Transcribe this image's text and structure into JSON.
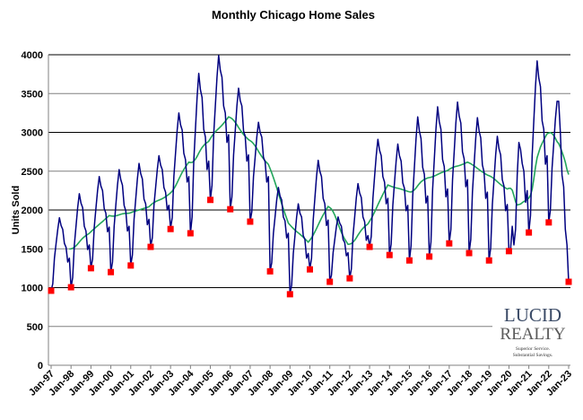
{
  "chart_data": {
    "type": "line",
    "title": "Monthly Chicago Home Sales",
    "xlabel": "",
    "ylabel": "Units Sold",
    "ylim": [
      0,
      4000
    ],
    "yticks": [
      "0",
      "500",
      "1000",
      "1500",
      "2000",
      "2500",
      "3000",
      "3500",
      "4000"
    ],
    "grid": true,
    "x_start": "Jan-97",
    "x_end": "Jan-23",
    "xticks": [
      "Jan-97",
      "Jan-98",
      "Jan-99",
      "Jan-00",
      "Jan-01",
      "Jan-02",
      "Jan-03",
      "Jan-04",
      "Jan-05",
      "Jan-06",
      "Jan-07",
      "Jan-08",
      "Jan-09",
      "Jan-10",
      "Jan-11",
      "Jan-12",
      "Jan-13",
      "Jan-14",
      "Jan-15",
      "Jan-16",
      "Jan-17",
      "Jan-18",
      "Jan-19",
      "Jan-20",
      "Jan-21",
      "Jan-22",
      "Jan-23"
    ],
    "series": [
      {
        "type": "line",
        "color": "#000080",
        "values_monthly": {
          "1997": [
            960,
            1050,
            1380,
            1570,
            1750,
            1900,
            1800,
            1750,
            1570,
            1520,
            1330,
            1380
          ],
          "1998": [
            1000,
            1130,
            1550,
            1790,
            2030,
            2210,
            2090,
            2030,
            1790,
            1730,
            1490,
            1550
          ],
          "1999": [
            1250,
            1370,
            1780,
            2020,
            2250,
            2430,
            2310,
            2250,
            2020,
            1960,
            1720,
            1780
          ],
          "2000": [
            1200,
            1330,
            1790,
            2060,
            2320,
            2520,
            2390,
            2320,
            2060,
            1990,
            1730,
            1790
          ],
          "2001": [
            1290,
            1420,
            1880,
            2140,
            2400,
            2600,
            2470,
            2400,
            2140,
            2080,
            1810,
            1880
          ],
          "2002": [
            1530,
            1640,
            2060,
            2290,
            2520,
            2700,
            2580,
            2520,
            2290,
            2230,
            2000,
            2060
          ],
          "2003": [
            1760,
            1900,
            2430,
            2730,
            3030,
            3250,
            3100,
            3030,
            2730,
            2650,
            2360,
            2430
          ],
          "2004": [
            1700,
            1910,
            2630,
            3040,
            3450,
            3760,
            3550,
            3450,
            3040,
            2940,
            2520,
            2630
          ],
          "2005": [
            2130,
            2320,
            2970,
            3340,
            3710,
            3990,
            3800,
            3710,
            3340,
            3250,
            2870,
            2970
          ],
          "2006": [
            2010,
            2170,
            2710,
            3020,
            3340,
            3570,
            3410,
            3340,
            3020,
            2950,
            2630,
            2710
          ],
          "2007": [
            1850,
            1980,
            2430,
            2680,
            2940,
            3130,
            3000,
            2940,
            2680,
            2620,
            2360,
            2430
          ],
          "2008": [
            1210,
            1320,
            1700,
            1910,
            2130,
            2290,
            2180,
            2130,
            1910,
            1860,
            1640,
            1700
          ],
          "2009": [
            920,
            1030,
            1440,
            1670,
            1910,
            2080,
            1960,
            1910,
            1670,
            1620,
            1380,
            1440
          ],
          "2010": [
            1240,
            1380,
            1870,
            2150,
            2430,
            2640,
            2500,
            2430,
            2150,
            2080,
            1800,
            1870
          ],
          "2011": [
            1080,
            1160,
            1450,
            1620,
            1790,
            1910,
            1830,
            1790,
            1620,
            1580,
            1410,
            1450
          ],
          "2012": [
            1120,
            1240,
            1670,
            1910,
            2160,
            2340,
            2220,
            2160,
            1910,
            1850,
            1610,
            1670
          ],
          "2013": [
            1530,
            1660,
            2150,
            2430,
            2700,
            2910,
            2770,
            2700,
            2430,
            2360,
            2080,
            2150
          ],
          "2014": [
            1420,
            1560,
            2060,
            2350,
            2630,
            2850,
            2700,
            2630,
            2350,
            2280,
            1990,
            2060
          ],
          "2015": [
            1350,
            1540,
            2180,
            2550,
            2920,
            3200,
            3020,
            2920,
            2550,
            2460,
            2090,
            2180
          ],
          "2016": [
            1400,
            1590,
            2270,
            2650,
            3040,
            3330,
            3140,
            3040,
            2650,
            2560,
            2170,
            2270
          ],
          "2017": [
            1570,
            1750,
            2390,
            2750,
            3120,
            3390,
            3210,
            3120,
            2750,
            2660,
            2300,
            2390
          ],
          "2018": [
            1450,
            1620,
            2230,
            2580,
            2930,
            3190,
            3020,
            2930,
            2580,
            2490,
            2150,
            2230
          ],
          "2019": [
            1350,
            1510,
            2070,
            2390,
            2710,
            2950,
            2790,
            2710,
            2390,
            2310,
            1990,
            2070
          ],
          "2020": [
            1470,
            1500,
            1790,
            1550,
            1750,
            2450,
            2870,
            2780,
            2600,
            2500,
            2100,
            2250
          ],
          "2021": [
            1710,
            1930,
            2700,
            3150,
            3590,
            3920,
            3700,
            3590,
            3150,
            3040,
            2590,
            2700
          ],
          "2022": [
            1840,
            2000,
            2540,
            2850,
            3170,
            3400,
            3400,
            3000,
            2450,
            2300,
            1750,
            1550
          ],
          "2023": [
            1075
          ]
        }
      },
      {
        "type": "line",
        "color": "#22a55b"
      },
      {
        "type": "scatter",
        "color": "#ff0000",
        "marker": "square",
        "x": [
          "Jan-97",
          "Jan-98",
          "Jan-99",
          "Jan-00",
          "Jan-01",
          "Jan-02",
          "Jan-03",
          "Jan-04",
          "Jan-05",
          "Jan-06",
          "Jan-07",
          "Jan-08",
          "Jan-09",
          "Jan-10",
          "Jan-11",
          "Jan-12",
          "Jan-13",
          "Jan-14",
          "Jan-15",
          "Jan-16",
          "Jan-17",
          "Jan-18",
          "Jan-19",
          "Jan-20",
          "Jan-21",
          "Jan-22",
          "Jan-23"
        ],
        "values": [
          960,
          1005,
          1250,
          1200,
          1285,
          1525,
          1755,
          1700,
          2130,
          2010,
          1850,
          1210,
          915,
          1235,
          1075,
          1120,
          1525,
          1420,
          1350,
          1400,
          1570,
          1445,
          1350,
          1470,
          1710,
          1840,
          1075
        ]
      }
    ]
  },
  "logo": {
    "line1": "LUCID",
    "line2": "REALTY",
    "tagline1": "Superior Service.",
    "tagline2": "Substantial Savings.",
    "color": "#3a4a66"
  }
}
